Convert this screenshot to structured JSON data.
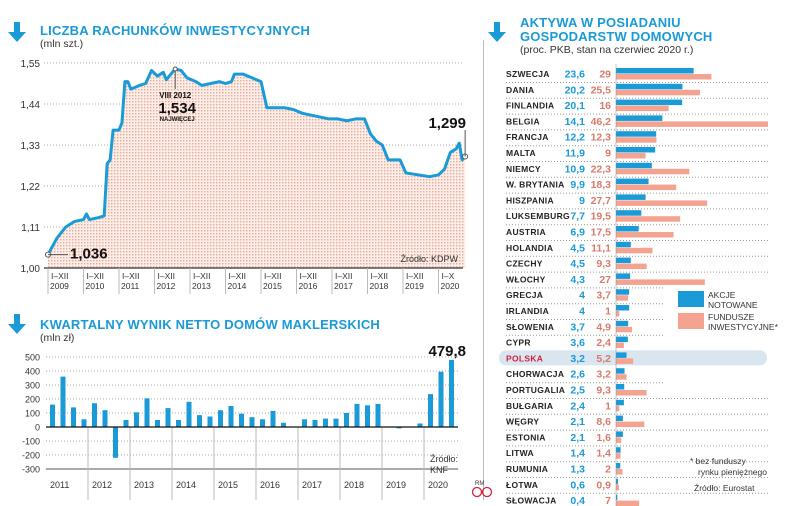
{
  "colors": {
    "accent": "#1a9ad6",
    "pink": "#f4a391",
    "highlight": "#d4213d",
    "fill": "#f6ddd2"
  },
  "chart_data": [
    {
      "type": "area",
      "title": "LICZBA RACHUNKÓW INWESTYCYJNYCH",
      "subtitle": "(mln szt.)",
      "yticks": [
        "1,00",
        "1,11",
        "1,22",
        "1,33",
        "1,44",
        "1,55"
      ],
      "ylim": [
        1.0,
        1.55
      ],
      "xticks": [
        [
          "I–XII",
          "2009"
        ],
        [
          "I–XII",
          "2010"
        ],
        [
          "I–XII",
          "2011"
        ],
        [
          "I–XII",
          "2012"
        ],
        [
          "I–XII",
          "2013"
        ],
        [
          "I–XII",
          "2014"
        ],
        [
          "I–XII",
          "2015"
        ],
        [
          "I–XII",
          "2016"
        ],
        [
          "I–XII",
          "2017"
        ],
        [
          "I–XII",
          "2018"
        ],
        [
          "I–XII",
          "2019"
        ],
        [
          "I–X",
          "2020"
        ]
      ],
      "grid": true,
      "source": "Źródło: KDPW",
      "annotations": {
        "start": "1,036",
        "end": "1,299",
        "peak_date": "VIII 2012",
        "peak_value": "1,534",
        "peak_note": "NAJWIĘCEJ"
      },
      "points": [
        [
          "2009-01",
          1.036
        ],
        [
          "2009-04",
          1.08
        ],
        [
          "2009-07",
          1.11
        ],
        [
          "2009-10",
          1.125
        ],
        [
          "2010-01",
          1.13
        ],
        [
          "2010-02",
          1.145
        ],
        [
          "2010-03",
          1.13
        ],
        [
          "2010-06",
          1.135
        ],
        [
          "2010-08",
          1.14
        ],
        [
          "2010-09",
          1.28
        ],
        [
          "2010-10",
          1.29
        ],
        [
          "2010-11",
          1.37
        ],
        [
          "2011-01",
          1.37
        ],
        [
          "2011-02",
          1.39
        ],
        [
          "2011-03",
          1.5
        ],
        [
          "2011-04",
          1.5
        ],
        [
          "2011-05",
          1.48
        ],
        [
          "2011-08",
          1.49
        ],
        [
          "2011-10",
          1.495
        ],
        [
          "2011-12",
          1.53
        ],
        [
          "2012-02",
          1.515
        ],
        [
          "2012-04",
          1.525
        ],
        [
          "2012-05",
          1.505
        ],
        [
          "2012-06",
          1.515
        ],
        [
          "2012-08",
          1.534
        ],
        [
          "2012-10",
          1.53
        ],
        [
          "2012-12",
          1.51
        ],
        [
          "2013-03",
          1.5
        ],
        [
          "2013-05",
          1.49
        ],
        [
          "2013-08",
          1.495
        ],
        [
          "2013-11",
          1.5
        ],
        [
          "2014-01",
          1.495
        ],
        [
          "2014-03",
          1.5
        ],
        [
          "2014-04",
          1.52
        ],
        [
          "2014-07",
          1.52
        ],
        [
          "2014-10",
          1.51
        ],
        [
          "2015-01",
          1.5
        ],
        [
          "2015-03",
          1.43
        ],
        [
          "2015-06",
          1.43
        ],
        [
          "2015-09",
          1.43
        ],
        [
          "2015-12",
          1.425
        ],
        [
          "2016-03",
          1.415
        ],
        [
          "2016-06",
          1.41
        ],
        [
          "2016-09",
          1.405
        ],
        [
          "2016-12",
          1.4
        ],
        [
          "2017-03",
          1.4
        ],
        [
          "2017-06",
          1.395
        ],
        [
          "2017-09",
          1.4
        ],
        [
          "2017-12",
          1.4
        ],
        [
          "2018-02",
          1.36
        ],
        [
          "2018-04",
          1.34
        ],
        [
          "2018-06",
          1.33
        ],
        [
          "2018-08",
          1.29
        ],
        [
          "2018-12",
          1.29
        ],
        [
          "2019-02",
          1.255
        ],
        [
          "2019-06",
          1.25
        ],
        [
          "2019-10",
          1.245
        ],
        [
          "2020-01",
          1.25
        ],
        [
          "2020-03",
          1.265
        ],
        [
          "2020-05",
          1.31
        ],
        [
          "2020-07",
          1.32
        ],
        [
          "2020-08",
          1.335
        ],
        [
          "2020-09",
          1.29
        ],
        [
          "2020-10",
          1.299
        ]
      ]
    },
    {
      "type": "bar",
      "title": "KWARTALNY WYNIK NETTO DOMÓW MAKLERSKICH",
      "subtitle": "(mln zł)",
      "yticks": [
        "-300",
        "-200",
        "-100",
        "0",
        "100",
        "200",
        "300",
        "400",
        "500"
      ],
      "ylim": [
        -300,
        500
      ],
      "years": [
        "2011",
        "2012",
        "2013",
        "2014",
        "2015",
        "2016",
        "2017",
        "2018",
        "2019",
        "2020"
      ],
      "values": [
        160,
        360,
        140,
        55,
        170,
        120,
        -220,
        50,
        105,
        205,
        50,
        135,
        50,
        180,
        85,
        75,
        120,
        150,
        95,
        70,
        55,
        115,
        30,
        0,
        55,
        50,
        60,
        60,
        100,
        165,
        155,
        165,
        0,
        -10,
        0,
        25,
        235,
        395,
        479.8
      ],
      "label_last": "479,8",
      "source": [
        "Źródło:",
        "KNF"
      ],
      "grid": true
    },
    {
      "type": "bar",
      "title": [
        "AKTYWA W POSIADANIU",
        "GOSPODARSTW DOMOWYCH"
      ],
      "subtitle": "(proc. PKB, stan na czerwiec 2020 r.)",
      "categories": [
        "SZWECJA",
        "DANIA",
        "FINLANDIA",
        "BELGIA",
        "FRANCJA",
        "MALTA",
        "NIEMCY",
        "W. BRYTANIA",
        "HISZPANIA",
        "LUKSEMBURG",
        "AUSTRIA",
        "HOLANDIA",
        "CZECHY",
        "WŁOCHY",
        "GRECJA",
        "IRLANDIA",
        "SŁOWENIA",
        "CYPR",
        "POLSKA",
        "CHORWACJA",
        "PORTUGALIA",
        "BUŁGARIA",
        "WĘGRY",
        "ESTONIA",
        "LITWA",
        "RUMUNIA",
        "ŁOTWA",
        "SŁOWACJA"
      ],
      "highlight": "POLSKA",
      "series": [
        {
          "name": "AKCJE NOTOWANE",
          "labels": [
            "23,6",
            "20,2",
            "20,1",
            "14,1",
            "12,2",
            "11,9",
            "10,9",
            "9,9",
            "9",
            "7,7",
            "6,9",
            "4,5",
            "4,5",
            "4,3",
            "4",
            "4",
            "3,7",
            "3,6",
            "3,2",
            "2,6",
            "2,5",
            "2,4",
            "2,1",
            "2,1",
            "1,4",
            "1,3",
            "0,6",
            "0,4"
          ],
          "values": [
            23.6,
            20.2,
            20.1,
            14.1,
            12.2,
            11.9,
            10.9,
            9.9,
            9,
            7.7,
            6.9,
            4.5,
            4.5,
            4.3,
            4,
            4,
            3.7,
            3.6,
            3.2,
            2.6,
            2.5,
            2.4,
            2.1,
            2.1,
            1.4,
            1.3,
            0.6,
            0.4
          ]
        },
        {
          "name": "FUNDUSZE INWESTYCYJNE*",
          "labels": [
            "29",
            "25,5",
            "16",
            "46,2",
            "12,3",
            "9",
            "22,3",
            "18,3",
            "27,7",
            "19,5",
            "17,5",
            "11,1",
            "9,3",
            "27",
            "3,7",
            "1",
            "4,9",
            "2,4",
            "5,2",
            "3,2",
            "9,3",
            "1",
            "8,6",
            "1,6",
            "1,4",
            "2",
            "0,9",
            "7"
          ],
          "values": [
            29,
            25.5,
            16,
            46.2,
            12.3,
            9,
            22.3,
            18.3,
            27.7,
            19.5,
            17.5,
            11.1,
            9.3,
            27,
            3.7,
            1,
            4.9,
            2.4,
            5.2,
            3.2,
            9.3,
            1,
            8.6,
            1.6,
            1.4,
            2,
            0.9,
            7
          ]
        }
      ],
      "legend": [
        [
          "AKCJE",
          "NOTOWANE"
        ],
        [
          "FUNDUSZE",
          "INWESTYCYJNE*"
        ]
      ],
      "footnote": [
        "* bez funduszy",
        "rynku pieniężnego"
      ],
      "source": "Źródło: Eurostat"
    }
  ],
  "logo": "RM CP"
}
